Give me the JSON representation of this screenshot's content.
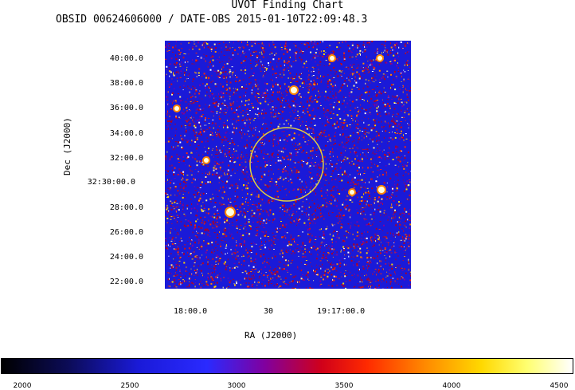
{
  "header": {
    "title": "UVOT Finding Chart",
    "subtitle": "OBSID 00624606000 / DATE-OBS 2015-01-10T22:09:48.3"
  },
  "axes": {
    "dec_label": "Dec (J2000)",
    "ra_label": "RA (J2000)",
    "dec_ticks": [
      "40:00.0",
      "38:00.0",
      "36:00.0",
      "34:00.0",
      "32:00.0",
      "32:30:00.0",
      "28:00.0",
      "26:00.0",
      "24:00.0",
      "22:00.0"
    ],
    "ra_ticks": [
      "18:00.0",
      "30",
      "19:17:00.0"
    ]
  },
  "colorbar": {
    "ticks": [
      "2000",
      "2500",
      "3000",
      "3500",
      "4000",
      "4500"
    ]
  },
  "colors": {
    "field_background": "#1a1ad8",
    "region_circle": "#e0d040"
  }
}
